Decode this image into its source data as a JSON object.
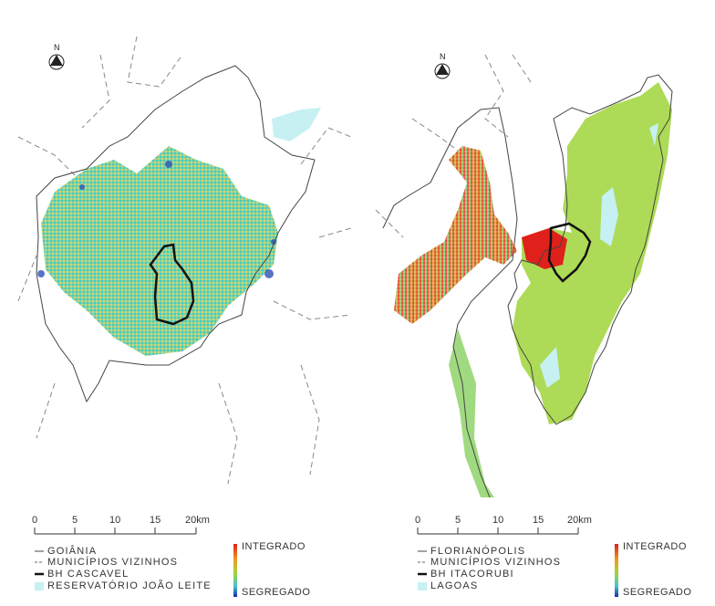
{
  "north_label": "N",
  "scale": {
    "ticks": [
      "0",
      "5",
      "10",
      "15",
      "20km"
    ]
  },
  "colors": {
    "integrated": "#e0201b",
    "mid_high": "#f09a1e",
    "mid": "#9fd53a",
    "mid_low": "#45c6cf",
    "segregated": "#1a2ba6",
    "lagoon": "#c7f0f2"
  },
  "gradient": {
    "top_label": "INTEGRADO",
    "bottom_label": "SEGREGADO"
  },
  "maps": [
    {
      "id": "goiania",
      "legend": [
        {
          "symbol": "solid-line",
          "label": "GOIÂNIA"
        },
        {
          "symbol": "dashed-line",
          "label": "MUNICÍPIOS VIZINHOS"
        },
        {
          "symbol": "thick-line",
          "label": "BH CASCAVEL"
        },
        {
          "symbol": "water-swatch",
          "label": "RESERVATÓRIO JOÃO LEITE"
        }
      ]
    },
    {
      "id": "florianopolis",
      "legend": [
        {
          "symbol": "solid-line",
          "label": "FLORIANÓPOLIS"
        },
        {
          "symbol": "dashed-line",
          "label": "MUNICÍPIOS VIZINHOS"
        },
        {
          "symbol": "thick-line",
          "label": "BH ITACORUBI"
        },
        {
          "symbol": "water-swatch",
          "label": "LAGOAS"
        }
      ]
    }
  ]
}
